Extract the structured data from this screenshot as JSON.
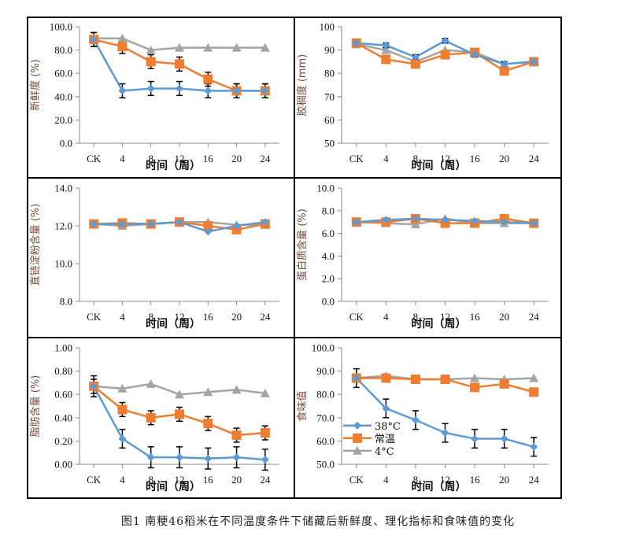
{
  "figure": {
    "caption": "图1    南粳46稻米在不同温度条件下储藏后新鲜度、理化指标和食味值的变化"
  },
  "legend": {
    "placement": "lower-left of 食味值 panel",
    "entries": [
      {
        "name": "38°C",
        "marker": "diamond",
        "color": "#5B9BD5"
      },
      {
        "name": "常温",
        "marker": "square",
        "color": "#ED7D31"
      },
      {
        "name": "4°C",
        "marker": "triangle",
        "color": "#A5A5A5"
      }
    ]
  },
  "chart_data": [
    {
      "type": "line",
      "panel": "top-left",
      "title": "",
      "xlabel": "时间（周）",
      "ylabel": "新鲜度 (%)",
      "categories": [
        "CK",
        "4",
        "8",
        "12",
        "16",
        "20",
        "24"
      ],
      "ylim": [
        0,
        100
      ],
      "yticks": [
        0,
        20,
        40,
        60,
        80,
        100
      ],
      "ytick_labels": [
        "0.0",
        "20.0",
        "40.0",
        "60.0",
        "80.0",
        "100.0"
      ],
      "grid": false,
      "series": [
        {
          "name": "38°C",
          "color": "#5B9BD5",
          "marker": "diamond",
          "values": [
            89,
            45,
            47,
            47,
            45,
            45,
            45
          ],
          "errors": [
            6,
            6,
            6,
            6,
            6,
            6,
            6
          ]
        },
        {
          "name": "常温",
          "color": "#ED7D31",
          "marker": "square",
          "values": [
            89,
            83,
            70,
            68,
            55,
            45,
            45
          ],
          "errors": [
            6,
            6,
            6,
            6,
            6,
            6,
            6
          ]
        },
        {
          "name": "4°C",
          "color": "#A5A5A5",
          "marker": "triangle",
          "values": [
            90,
            90,
            80,
            82,
            82,
            82,
            82
          ],
          "errors": [
            0,
            0,
            0,
            0,
            0,
            0,
            0
          ]
        }
      ]
    },
    {
      "type": "line",
      "panel": "top-right",
      "title": "",
      "xlabel": "时间（周）",
      "ylabel": "胶稠度 (mm)",
      "categories": [
        "CK",
        "4",
        "8",
        "12",
        "16",
        "20",
        "24"
      ],
      "ylim": [
        50,
        100
      ],
      "yticks": [
        50,
        60,
        70,
        80,
        90,
        100
      ],
      "ytick_labels": [
        "50",
        "60",
        "70",
        "80",
        "90",
        "100"
      ],
      "grid": false,
      "series": [
        {
          "name": "38°C",
          "color": "#5B9BD5",
          "marker": "diamond",
          "values": [
            93,
            92,
            87,
            94,
            88,
            84,
            85
          ],
          "errors": [
            1,
            1,
            1,
            1,
            1,
            1,
            0
          ]
        },
        {
          "name": "常温",
          "color": "#ED7D31",
          "marker": "square",
          "values": [
            93,
            86,
            84,
            88,
            89,
            81,
            85
          ],
          "errors": [
            0,
            0,
            0,
            0,
            0,
            0,
            0
          ]
        },
        {
          "name": "4°C",
          "color": "#A5A5A5",
          "marker": "triangle",
          "values": [
            92.5,
            90,
            85,
            90,
            89,
            84,
            85
          ],
          "errors": [
            0,
            0,
            0,
            0,
            0,
            0,
            0
          ]
        }
      ]
    },
    {
      "type": "line",
      "panel": "middle-left",
      "title": "",
      "xlabel": "时间（周）",
      "ylabel": "直链淀粉含量 (%)",
      "categories": [
        "CK",
        "4",
        "8",
        "12",
        "16",
        "20",
        "24"
      ],
      "ylim": [
        8,
        14
      ],
      "yticks": [
        8,
        10,
        12,
        14
      ],
      "ytick_labels": [
        "8.0",
        "10.0",
        "12.0",
        "14.0"
      ],
      "grid": false,
      "series": [
        {
          "name": "38°C",
          "color": "#5B9BD5",
          "marker": "diamond",
          "values": [
            12.1,
            12.1,
            12.1,
            12.2,
            11.7,
            12.0,
            12.2
          ],
          "errors": [
            0,
            0,
            0,
            0,
            0,
            0,
            0
          ]
        },
        {
          "name": "常温",
          "color": "#ED7D31",
          "marker": "square",
          "values": [
            12.1,
            12.15,
            12.1,
            12.2,
            12.0,
            11.8,
            12.1
          ],
          "errors": [
            0,
            0,
            0,
            0,
            0,
            0,
            0
          ]
        },
        {
          "name": "4°C",
          "color": "#A5A5A5",
          "marker": "triangle",
          "values": [
            12.1,
            12.0,
            12.1,
            12.2,
            12.2,
            12.05,
            12.05
          ],
          "errors": [
            0,
            0,
            0,
            0,
            0,
            0,
            0
          ]
        }
      ]
    },
    {
      "type": "line",
      "panel": "middle-right",
      "title": "",
      "xlabel": "时间（周）",
      "ylabel": "蛋白质含量 (%)",
      "categories": [
        "CK",
        "4",
        "8",
        "12",
        "16",
        "20",
        "24"
      ],
      "ylim": [
        0,
        10
      ],
      "yticks": [
        0,
        2,
        4,
        6,
        8,
        10
      ],
      "ytick_labels": [
        "0.0",
        "2.0",
        "4.0",
        "6.0",
        "8.0",
        "10.0"
      ],
      "grid": false,
      "series": [
        {
          "name": "38°C",
          "color": "#5B9BD5",
          "marker": "diamond",
          "values": [
            7.0,
            7.2,
            7.3,
            7.2,
            7.1,
            7.0,
            6.9
          ],
          "errors": [
            0,
            0,
            0,
            0,
            0,
            0,
            0
          ]
        },
        {
          "name": "常温",
          "color": "#ED7D31",
          "marker": "square",
          "values": [
            7.0,
            7.0,
            7.3,
            6.9,
            6.9,
            7.3,
            6.9
          ],
          "errors": [
            0,
            0,
            0,
            0,
            0,
            0,
            0
          ]
        },
        {
          "name": "4°C",
          "color": "#A5A5A5",
          "marker": "triangle",
          "values": [
            7.0,
            6.9,
            6.8,
            7.3,
            6.9,
            6.9,
            6.9
          ],
          "errors": [
            0,
            0,
            0,
            0,
            0,
            0,
            0
          ]
        }
      ]
    },
    {
      "type": "line",
      "panel": "bottom-left",
      "title": "",
      "xlabel": "时间（周）",
      "ylabel": "脂肪含量 (%)",
      "categories": [
        "CK",
        "4",
        "8",
        "12",
        "16",
        "20",
        "24"
      ],
      "ylim": [
        0,
        1
      ],
      "yticks": [
        0,
        0.2,
        0.4,
        0.6,
        0.8,
        1.0
      ],
      "ytick_labels": [
        "0.00",
        "0.20",
        "0.40",
        "0.60",
        "0.80",
        "1.00"
      ],
      "grid": false,
      "series": [
        {
          "name": "38°C",
          "color": "#5B9BD5",
          "marker": "diamond",
          "values": [
            0.67,
            0.22,
            0.06,
            0.06,
            0.05,
            0.06,
            0.04
          ],
          "errors": [
            0.09,
            0.08,
            0.09,
            0.09,
            0.09,
            0.09,
            0.09
          ]
        },
        {
          "name": "常温",
          "color": "#ED7D31",
          "marker": "square",
          "values": [
            0.67,
            0.47,
            0.4,
            0.43,
            0.35,
            0.25,
            0.27
          ],
          "errors": [
            0.06,
            0.06,
            0.06,
            0.06,
            0.06,
            0.06,
            0.06
          ]
        },
        {
          "name": "4°C",
          "color": "#A5A5A5",
          "marker": "triangle",
          "values": [
            0.67,
            0.65,
            0.69,
            0.6,
            0.62,
            0.64,
            0.61
          ],
          "errors": [
            0,
            0,
            0,
            0,
            0,
            0,
            0
          ]
        }
      ]
    },
    {
      "type": "line",
      "panel": "bottom-right",
      "title": "",
      "xlabel": "时间（周）",
      "ylabel": "食味值",
      "categories": [
        "CK",
        "4",
        "8",
        "12",
        "16",
        "20",
        "24"
      ],
      "ylim": [
        50,
        100
      ],
      "yticks": [
        50,
        60,
        70,
        80,
        90,
        100
      ],
      "ytick_labels": [
        "50.0",
        "60.0",
        "70.0",
        "80.0",
        "90.0",
        "100.0"
      ],
      "grid": false,
      "legend": true,
      "series": [
        {
          "name": "38°C",
          "color": "#5B9BD5",
          "marker": "diamond",
          "values": [
            87,
            74,
            69,
            63.5,
            61,
            61,
            57.5
          ],
          "errors": [
            4,
            4,
            4,
            4,
            4,
            4,
            4
          ]
        },
        {
          "name": "常温",
          "color": "#ED7D31",
          "marker": "square",
          "values": [
            87,
            87,
            86.5,
            86.5,
            83,
            84.5,
            81
          ],
          "errors": [
            0,
            0,
            0,
            0,
            0,
            0,
            0
          ]
        },
        {
          "name": "4°C",
          "color": "#A5A5A5",
          "marker": "triangle",
          "values": [
            87,
            88,
            86.5,
            86.5,
            87,
            86.5,
            87
          ],
          "errors": [
            0,
            0,
            0,
            0,
            0,
            0,
            0
          ]
        }
      ]
    }
  ]
}
